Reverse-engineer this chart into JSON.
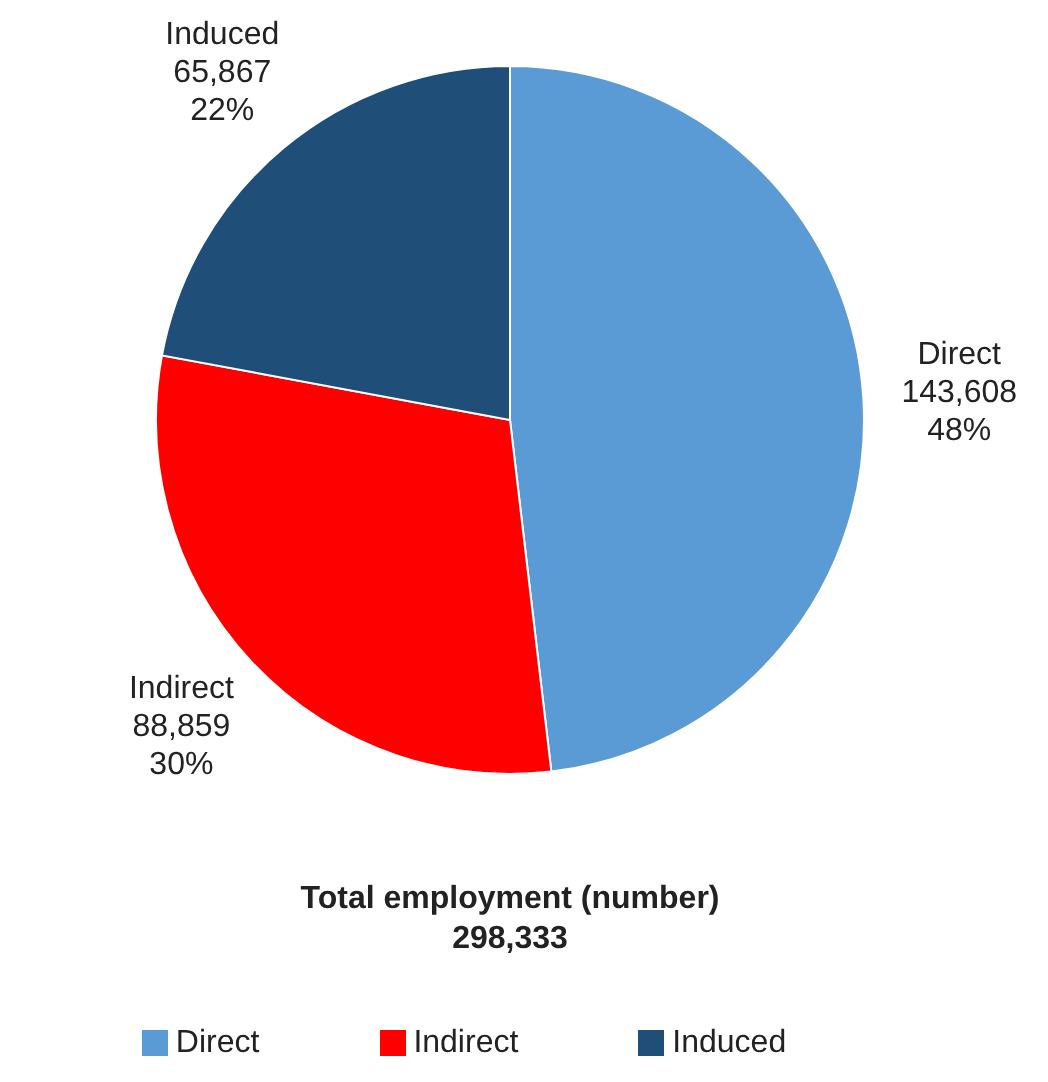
{
  "chart_data": {
    "type": "pie",
    "title": "Total employment (number)",
    "subtitle": "298,333",
    "categories": [
      "Direct",
      "Indirect",
      "Induced"
    ],
    "values": [
      143608,
      88859,
      65867
    ],
    "colors": [
      "#5b9bd5",
      "#ff0000",
      "#1f4e79"
    ],
    "value_labels": [
      "143,608\n48%",
      "88,859\n30%",
      "65,867\n22%"
    ],
    "legend": "bottom"
  }
}
